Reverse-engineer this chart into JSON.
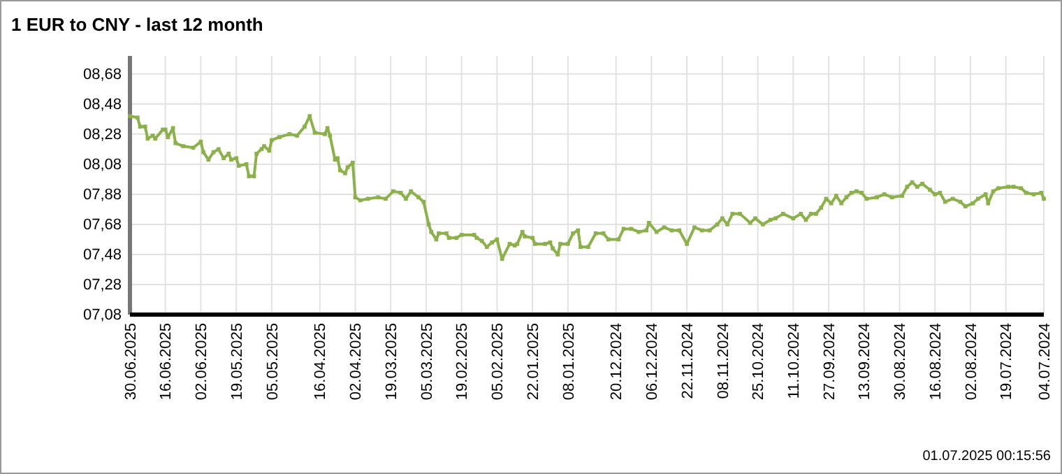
{
  "chart_data": {
    "type": "line",
    "title": "1 EUR to CNY - last 12 month",
    "annotations": [
      "01.07.2025 00:15:56"
    ],
    "x": [
      "2025-06-30",
      "2025-06-27",
      "2025-06-26",
      "2025-06-24",
      "2025-06-23",
      "2025-06-21",
      "2025-06-20",
      "2025-06-17",
      "2025-06-16",
      "2025-06-15",
      "2025-06-13",
      "2025-06-12",
      "2025-06-09",
      "2025-06-05",
      "2025-06-02",
      "2025-06-01",
      "2025-05-30",
      "2025-05-28",
      "2025-05-26",
      "2025-05-24",
      "2025-05-22",
      "2025-05-21",
      "2025-05-19",
      "2025-05-18",
      "2025-05-15",
      "2025-05-14",
      "2025-05-12",
      "2025-05-11",
      "2025-05-09",
      "2025-05-08",
      "2025-05-06",
      "2025-05-05",
      "2025-05-02",
      "2025-04-28",
      "2025-04-25",
      "2025-04-22",
      "2025-04-20",
      "2025-04-18",
      "2025-04-14",
      "2025-04-13",
      "2025-04-12",
      "2025-04-10",
      "2025-04-09",
      "2025-04-08",
      "2025-04-06",
      "2025-04-05",
      "2025-04-03",
      "2025-04-02",
      "2025-03-31",
      "2025-03-28",
      "2025-03-24",
      "2025-03-21",
      "2025-03-18",
      "2025-03-15",
      "2025-03-13",
      "2025-03-11",
      "2025-03-08",
      "2025-03-06",
      "2025-03-04",
      "2025-03-03",
      "2025-03-01",
      "2025-02-28",
      "2025-02-25",
      "2025-02-24",
      "2025-02-21",
      "2025-02-19",
      "2025-02-14",
      "2025-02-13",
      "2025-02-11",
      "2025-02-09",
      "2025-02-07",
      "2025-02-05",
      "2025-02-03",
      "2025-01-31",
      "2025-01-29",
      "2025-01-28",
      "2025-01-26",
      "2025-01-25",
      "2025-01-22",
      "2025-01-21",
      "2025-01-17",
      "2025-01-15",
      "2025-01-14",
      "2025-01-12",
      "2025-01-11",
      "2025-01-08",
      "2025-01-06",
      "2025-01-04",
      "2025-01-03",
      "2024-12-31",
      "2024-12-28",
      "2024-12-25",
      "2024-12-23",
      "2024-12-19",
      "2024-12-17",
      "2024-12-14",
      "2024-12-11",
      "2024-12-08",
      "2024-12-07",
      "2024-12-04",
      "2024-12-01",
      "2024-11-28",
      "2024-11-25",
      "2024-11-22",
      "2024-11-19",
      "2024-11-16",
      "2024-11-13",
      "2024-11-10",
      "2024-11-08",
      "2024-11-06",
      "2024-11-04",
      "2024-11-01",
      "2024-10-28",
      "2024-10-26",
      "2024-10-23",
      "2024-10-20",
      "2024-10-18",
      "2024-10-15",
      "2024-10-11",
      "2024-10-08",
      "2024-10-06",
      "2024-10-04",
      "2024-10-02",
      "2024-09-30",
      "2024-09-28",
      "2024-09-26",
      "2024-09-24",
      "2024-09-22",
      "2024-09-20",
      "2024-09-18",
      "2024-09-16",
      "2024-09-14",
      "2024-09-12",
      "2024-09-08",
      "2024-09-05",
      "2024-09-02",
      "2024-08-29",
      "2024-08-27",
      "2024-08-25",
      "2024-08-23",
      "2024-08-21",
      "2024-08-18",
      "2024-08-16",
      "2024-08-14",
      "2024-08-12",
      "2024-08-09",
      "2024-08-06",
      "2024-08-04",
      "2024-08-01",
      "2024-07-30",
      "2024-07-27",
      "2024-07-26",
      "2024-07-24",
      "2024-07-22",
      "2024-07-18",
      "2024-07-16",
      "2024-07-13",
      "2024-07-11",
      "2024-07-08",
      "2024-07-05",
      "2024-07-04"
    ],
    "series": [
      {
        "color": "#8cb04c",
        "values": [
          8.4,
          8.39,
          8.33,
          8.33,
          8.25,
          8.27,
          8.25,
          8.31,
          8.31,
          8.26,
          8.32,
          8.22,
          8.2,
          8.19,
          8.23,
          8.16,
          8.11,
          8.16,
          8.18,
          8.12,
          8.15,
          8.11,
          8.12,
          8.07,
          8.08,
          8.0,
          8.0,
          8.15,
          8.18,
          8.2,
          8.17,
          8.24,
          8.26,
          8.28,
          8.27,
          8.33,
          8.4,
          8.29,
          8.28,
          8.32,
          8.27,
          8.11,
          8.12,
          8.04,
          8.02,
          8.06,
          8.09,
          7.86,
          7.84,
          7.85,
          7.86,
          7.85,
          7.9,
          7.89,
          7.85,
          7.9,
          7.86,
          7.83,
          7.68,
          7.63,
          7.58,
          7.62,
          7.62,
          7.59,
          7.59,
          7.61,
          7.61,
          7.59,
          7.57,
          7.53,
          7.56,
          7.58,
          7.45,
          7.55,
          7.54,
          7.55,
          7.63,
          7.6,
          7.59,
          7.55,
          7.55,
          7.56,
          7.52,
          7.48,
          7.55,
          7.55,
          7.62,
          7.64,
          7.53,
          7.53,
          7.62,
          7.62,
          7.58,
          7.58,
          7.65,
          7.65,
          7.63,
          7.64,
          7.69,
          7.63,
          7.66,
          7.64,
          7.64,
          7.55,
          7.66,
          7.64,
          7.64,
          7.68,
          7.72,
          7.68,
          7.75,
          7.75,
          7.69,
          7.72,
          7.68,
          7.71,
          7.72,
          7.75,
          7.72,
          7.75,
          7.71,
          7.75,
          7.75,
          7.79,
          7.85,
          7.82,
          7.87,
          7.82,
          7.86,
          7.89,
          7.9,
          7.89,
          7.85,
          7.86,
          7.88,
          7.86,
          7.87,
          7.93,
          7.96,
          7.93,
          7.95,
          7.91,
          7.88,
          7.89,
          7.83,
          7.85,
          7.83,
          7.8,
          7.82,
          7.85,
          7.88,
          7.82,
          7.9,
          7.92,
          7.93,
          7.93,
          7.92,
          7.89,
          7.88,
          7.89,
          7.85
        ]
      }
    ],
    "xlim": [
      "2025-06-30",
      "2024-07-04"
    ],
    "xticks": [
      {
        "value": "2025-06-30",
        "label": "30.06.2025"
      },
      {
        "value": "2025-06-16",
        "label": "16.06.2025"
      },
      {
        "value": "2025-06-02",
        "label": "02.06.2025"
      },
      {
        "value": "2025-05-19",
        "label": "19.05.2025"
      },
      {
        "value": "2025-05-05",
        "label": "05.05.2025"
      },
      {
        "value": "2025-04-16",
        "label": "16.04.2025"
      },
      {
        "value": "2025-04-02",
        "label": "02.04.2025"
      },
      {
        "value": "2025-03-19",
        "label": "19.03.2025"
      },
      {
        "value": "2025-03-05",
        "label": "05.03.2025"
      },
      {
        "value": "2025-02-19",
        "label": "19.02.2025"
      },
      {
        "value": "2025-02-05",
        "label": "05.02.2025"
      },
      {
        "value": "2025-01-22",
        "label": "22.01.2025"
      },
      {
        "value": "2025-01-08",
        "label": "08.01.2025"
      },
      {
        "value": "2024-12-20",
        "label": "20.12.2024"
      },
      {
        "value": "2024-12-06",
        "label": "06.12.2024"
      },
      {
        "value": "2024-11-22",
        "label": "22.11.2024"
      },
      {
        "value": "2024-11-08",
        "label": "08.11.2024"
      },
      {
        "value": "2024-10-25",
        "label": "25.10.2024"
      },
      {
        "value": "2024-10-11",
        "label": "11.10.2024"
      },
      {
        "value": "2024-09-27",
        "label": "27.09.2024"
      },
      {
        "value": "2024-09-13",
        "label": "13.09.2024"
      },
      {
        "value": "2024-08-30",
        "label": "30.08.2024"
      },
      {
        "value": "2024-08-16",
        "label": "16.08.2024"
      },
      {
        "value": "2024-08-02",
        "label": "02.08.2024"
      },
      {
        "value": "2024-07-19",
        "label": "19.07.2024"
      },
      {
        "value": "2024-07-04",
        "label": "04.07.2024"
      }
    ],
    "ylim": [
      7.08,
      8.8
    ],
    "yticks": [
      {
        "value": 7.08,
        "label": "07,08"
      },
      {
        "value": 7.28,
        "label": "07,28"
      },
      {
        "value": 7.48,
        "label": "07,48"
      },
      {
        "value": 7.68,
        "label": "07,68"
      },
      {
        "value": 7.88,
        "label": "07,88"
      },
      {
        "value": 8.08,
        "label": "08,08"
      },
      {
        "value": 8.28,
        "label": "08,28"
      },
      {
        "value": 8.48,
        "label": "08,48"
      },
      {
        "value": 8.68,
        "label": "08,68"
      }
    ],
    "grid": true,
    "marker": "square",
    "line_style": "solid"
  }
}
